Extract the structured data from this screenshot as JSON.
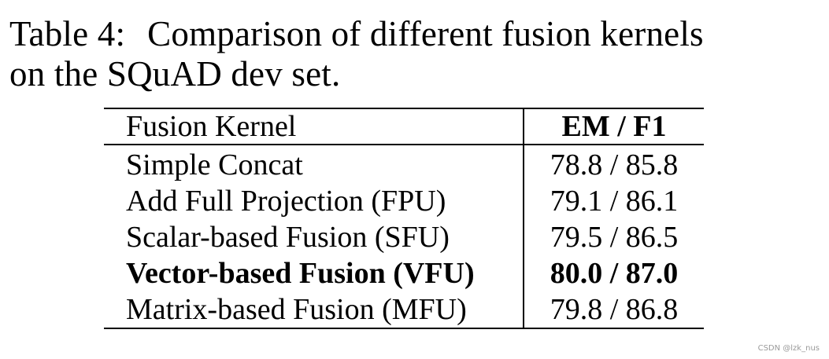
{
  "caption": {
    "label": "Table 4:",
    "line1": "Comparison of different fusion kernels",
    "line2": "on the SQuAD dev set."
  },
  "table": {
    "headers": {
      "kernel": "Fusion Kernel",
      "score": "EM / F1"
    },
    "rows": [
      {
        "kernel": "Simple Concat",
        "score": "78.8 / 85.8"
      },
      {
        "kernel": "Add Full Projection (FPU)",
        "score": "79.1 / 86.1"
      },
      {
        "kernel": "Scalar-based Fusion (SFU)",
        "score": "79.5 / 86.5"
      },
      {
        "kernel": "Vector-based Fusion (VFU)",
        "score": "80.0 / 87.0"
      },
      {
        "kernel": "Matrix-based Fusion (MFU)",
        "score": "79.8 / 86.8"
      }
    ]
  },
  "watermark": "CSDN @lzk_nus"
}
